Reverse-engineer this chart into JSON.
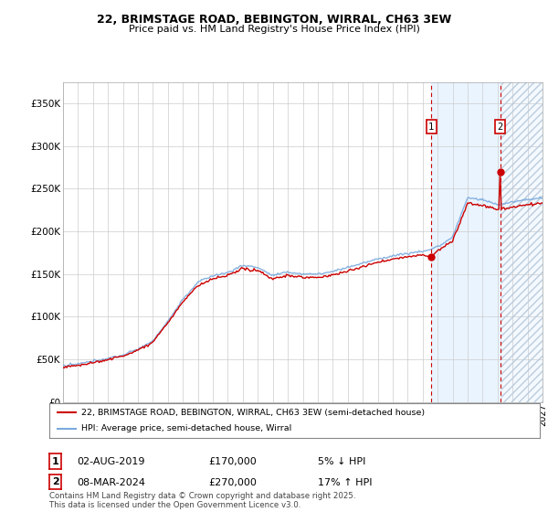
{
  "title_line1": "22, BRIMSTAGE ROAD, BEBINGTON, WIRRAL, CH63 3EW",
  "title_line2": "Price paid vs. HM Land Registry's House Price Index (HPI)",
  "background_color": "#ffffff",
  "grid_color": "#cccccc",
  "hpi_color": "#7aaadd",
  "price_color": "#cc0000",
  "shade_color": "#ddeeff",
  "legend_entry1": "22, BRIMSTAGE ROAD, BEBINGTON, WIRRAL, CH63 3EW (semi-detached house)",
  "legend_entry2": "HPI: Average price, semi-detached house, Wirral",
  "footnote": "Contains HM Land Registry data © Crown copyright and database right 2025.\nThis data is licensed under the Open Government Licence v3.0.",
  "annotation1_date": "02-AUG-2019",
  "annotation1_price": "£170,000",
  "annotation1_hpi": "5% ↓ HPI",
  "annotation2_date": "08-MAR-2024",
  "annotation2_price": "£270,000",
  "annotation2_hpi": "17% ↑ HPI",
  "marker1_year": 2019.583,
  "marker2_year": 2024.167,
  "marker1_price": 170000,
  "marker2_price": 270000,
  "ylim_max": 375000,
  "ylim_min": 0,
  "xmin": 1995,
  "xmax": 2027
}
